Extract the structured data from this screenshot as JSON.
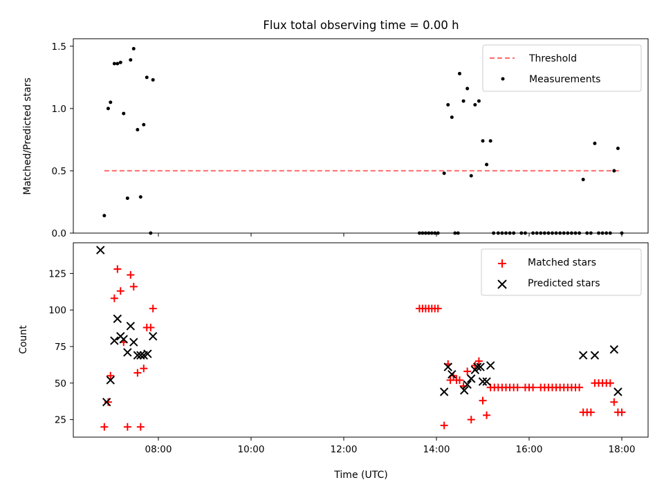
{
  "chart_data": [
    {
      "type": "scatter",
      "title": "Flux total observing time = 0.00 h",
      "xlabel": "",
      "ylabel": "Matched/Predicted stars",
      "xlim": [
        "06:40",
        "18:20"
      ],
      "ylim": [
        0,
        1.56
      ],
      "y_ticks": [
        0.0,
        0.5,
        1.0,
        1.5
      ],
      "y_tick_labels": [
        "0.0",
        "0.5",
        "1.0",
        "1.5"
      ],
      "legend_position": "top-right",
      "colors": {
        "threshold": "#ff6b6b",
        "measurements": "#000000"
      },
      "series": [
        {
          "name": "Threshold",
          "style": "dashed-line",
          "points": [
            [
              "06:50",
              0.5
            ],
            [
              "18:00",
              0.5
            ]
          ]
        },
        {
          "name": "Measurements",
          "style": "dot",
          "points": [
            [
              "06:50",
              0.14
            ],
            [
              "06:55",
              1.0
            ],
            [
              "06:58",
              1.05
            ],
            [
              "07:03",
              1.36
            ],
            [
              "07:07",
              1.36
            ],
            [
              "07:11",
              1.37
            ],
            [
              "07:15",
              0.96
            ],
            [
              "07:20",
              0.28
            ],
            [
              "07:24",
              1.39
            ],
            [
              "07:28",
              1.48
            ],
            [
              "07:33",
              0.83
            ],
            [
              "07:37",
              0.29
            ],
            [
              "07:41",
              0.87
            ],
            [
              "07:45",
              1.25
            ],
            [
              "07:50",
              0.0
            ],
            [
              "07:53",
              1.23
            ],
            [
              "13:38",
              0.0
            ],
            [
              "13:42",
              0.0
            ],
            [
              "13:46",
              0.0
            ],
            [
              "13:50",
              0.0
            ],
            [
              "13:54",
              0.0
            ],
            [
              "13:58",
              0.0
            ],
            [
              "14:02",
              0.0
            ],
            [
              "14:10",
              0.48
            ],
            [
              "14:15",
              1.03
            ],
            [
              "14:20",
              0.93
            ],
            [
              "14:24",
              0.0
            ],
            [
              "14:28",
              0.0
            ],
            [
              "14:30",
              1.28
            ],
            [
              "14:35",
              1.06
            ],
            [
              "14:40",
              1.16
            ],
            [
              "14:45",
              0.46
            ],
            [
              "14:50",
              1.03
            ],
            [
              "14:55",
              1.06
            ],
            [
              "15:00",
              0.74
            ],
            [
              "15:05",
              0.55
            ],
            [
              "15:10",
              0.74
            ],
            [
              "15:14",
              0.0
            ],
            [
              "15:20",
              0.0
            ],
            [
              "15:25",
              0.0
            ],
            [
              "15:30",
              0.0
            ],
            [
              "15:35",
              0.0
            ],
            [
              "15:40",
              0.0
            ],
            [
              "15:50",
              0.0
            ],
            [
              "15:55",
              0.0
            ],
            [
              "16:05",
              0.0
            ],
            [
              "16:10",
              0.0
            ],
            [
              "16:15",
              0.0
            ],
            [
              "16:20",
              0.0
            ],
            [
              "16:25",
              0.0
            ],
            [
              "16:30",
              0.0
            ],
            [
              "16:35",
              0.0
            ],
            [
              "16:40",
              0.0
            ],
            [
              "16:45",
              0.0
            ],
            [
              "16:50",
              0.0
            ],
            [
              "16:55",
              0.0
            ],
            [
              "17:00",
              0.0
            ],
            [
              "17:05",
              0.0
            ],
            [
              "17:10",
              0.43
            ],
            [
              "17:15",
              0.0
            ],
            [
              "17:20",
              0.0
            ],
            [
              "17:25",
              0.72
            ],
            [
              "17:30",
              0.0
            ],
            [
              "17:35",
              0.0
            ],
            [
              "17:40",
              0.0
            ],
            [
              "17:45",
              0.0
            ],
            [
              "17:50",
              0.5
            ],
            [
              "17:55",
              0.68
            ],
            [
              "18:00",
              0.0
            ]
          ]
        }
      ]
    },
    {
      "type": "scatter",
      "title": "",
      "xlabel": "Time (UTC)",
      "ylabel": "Count",
      "xlim": [
        "06:40",
        "18:20"
      ],
      "ylim": [
        13,
        146
      ],
      "x_ticks": [
        "08:00",
        "10:00",
        "12:00",
        "14:00",
        "16:00",
        "18:00"
      ],
      "y_ticks": [
        25,
        50,
        75,
        100,
        125
      ],
      "y_tick_labels": [
        "25",
        "50",
        "75",
        "100",
        "125"
      ],
      "legend_position": "top-right",
      "colors": {
        "matched": "#ff0000",
        "predicted": "#000000"
      },
      "series": [
        {
          "name": "Matched stars",
          "style": "plus",
          "points": [
            [
              "06:50",
              20
            ],
            [
              "06:55",
              37
            ],
            [
              "06:58",
              55
            ],
            [
              "07:03",
              108
            ],
            [
              "07:07",
              128
            ],
            [
              "07:11",
              113
            ],
            [
              "07:15",
              78
            ],
            [
              "07:20",
              20
            ],
            [
              "07:24",
              124
            ],
            [
              "07:28",
              116
            ],
            [
              "07:33",
              57
            ],
            [
              "07:37",
              20
            ],
            [
              "07:41",
              60
            ],
            [
              "07:45",
              88
            ],
            [
              "07:50",
              88
            ],
            [
              "07:53",
              101
            ],
            [
              "13:38",
              101
            ],
            [
              "13:42",
              101
            ],
            [
              "13:46",
              101
            ],
            [
              "13:50",
              101
            ],
            [
              "13:54",
              101
            ],
            [
              "13:58",
              101
            ],
            [
              "14:02",
              101
            ],
            [
              "14:10",
              21
            ],
            [
              "14:15",
              63
            ],
            [
              "14:18",
              52
            ],
            [
              "14:22",
              55
            ],
            [
              "14:26",
              52
            ],
            [
              "14:30",
              52
            ],
            [
              "14:35",
              48
            ],
            [
              "14:40",
              58
            ],
            [
              "14:45",
              25
            ],
            [
              "14:50",
              62
            ],
            [
              "14:55",
              65
            ],
            [
              "15:00",
              38
            ],
            [
              "15:05",
              28
            ],
            [
              "15:10",
              47
            ],
            [
              "15:15",
              47
            ],
            [
              "15:20",
              47
            ],
            [
              "15:25",
              47
            ],
            [
              "15:30",
              47
            ],
            [
              "15:35",
              47
            ],
            [
              "15:40",
              47
            ],
            [
              "15:45",
              47
            ],
            [
              "15:55",
              47
            ],
            [
              "16:00",
              47
            ],
            [
              "16:05",
              47
            ],
            [
              "16:15",
              47
            ],
            [
              "16:20",
              47
            ],
            [
              "16:25",
              47
            ],
            [
              "16:30",
              47
            ],
            [
              "16:35",
              47
            ],
            [
              "16:40",
              47
            ],
            [
              "16:45",
              47
            ],
            [
              "16:50",
              47
            ],
            [
              "16:55",
              47
            ],
            [
              "17:00",
              47
            ],
            [
              "17:05",
              47
            ],
            [
              "17:10",
              30
            ],
            [
              "17:15",
              30
            ],
            [
              "17:20",
              30
            ],
            [
              "17:25",
              50
            ],
            [
              "17:30",
              50
            ],
            [
              "17:35",
              50
            ],
            [
              "17:40",
              50
            ],
            [
              "17:45",
              50
            ],
            [
              "17:50",
              37
            ],
            [
              "17:55",
              30
            ],
            [
              "18:00",
              30
            ]
          ]
        },
        {
          "name": "Predicted stars",
          "style": "cross",
          "points": [
            [
              "06:45",
              141
            ],
            [
              "06:53",
              37
            ],
            [
              "06:58",
              52
            ],
            [
              "07:03",
              79
            ],
            [
              "07:07",
              94
            ],
            [
              "07:11",
              82
            ],
            [
              "07:15",
              80
            ],
            [
              "07:20",
              71
            ],
            [
              "07:24",
              89
            ],
            [
              "07:28",
              78
            ],
            [
              "07:33",
              69
            ],
            [
              "07:37",
              69
            ],
            [
              "07:41",
              69
            ],
            [
              "07:46",
              70
            ],
            [
              "07:53",
              82
            ],
            [
              "14:10",
              44
            ],
            [
              "14:15",
              61
            ],
            [
              "14:20",
              56
            ],
            [
              "14:36",
              45
            ],
            [
              "14:40",
              49
            ],
            [
              "14:45",
              53
            ],
            [
              "14:50",
              59
            ],
            [
              "14:53",
              61
            ],
            [
              "14:57",
              61
            ],
            [
              "15:00",
              51
            ],
            [
              "15:05",
              51
            ],
            [
              "15:10",
              62
            ],
            [
              "17:10",
              69
            ],
            [
              "17:25",
              69
            ],
            [
              "17:50",
              73
            ],
            [
              "17:55",
              44
            ]
          ]
        }
      ]
    }
  ]
}
